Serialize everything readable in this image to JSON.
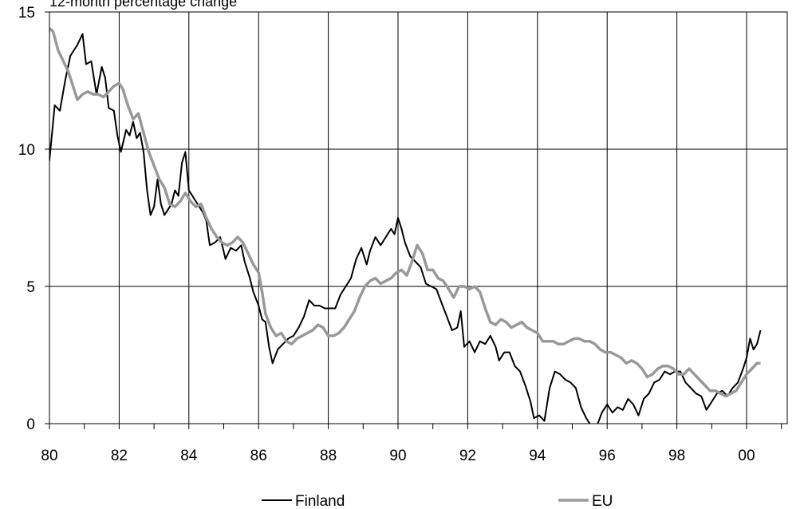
{
  "chart_data": {
    "type": "line",
    "title": "",
    "ylabel": "12-month percentage change",
    "xlabel": "",
    "xlim": [
      1980,
      2001.5
    ],
    "ylim": [
      0,
      15
    ],
    "x_ticks": [
      {
        "value": 1980,
        "label": "80"
      },
      {
        "value": 1982,
        "label": "82"
      },
      {
        "value": 1984,
        "label": "84"
      },
      {
        "value": 1986,
        "label": "86"
      },
      {
        "value": 1988,
        "label": "88"
      },
      {
        "value": 1990,
        "label": "90"
      },
      {
        "value": 1992,
        "label": "92"
      },
      {
        "value": 1994,
        "label": "94"
      },
      {
        "value": 1996,
        "label": "96"
      },
      {
        "value": 1998,
        "label": "98"
      },
      {
        "value": 2000,
        "label": "00"
      }
    ],
    "y_ticks": [
      {
        "value": 0,
        "label": "0"
      },
      {
        "value": 5,
        "label": "5"
      },
      {
        "value": 10,
        "label": "10"
      },
      {
        "value": 15,
        "label": "15"
      }
    ],
    "grid": {
      "vertical": true,
      "horizontal": true
    },
    "legend": "bottom",
    "series": [
      {
        "name": "Finland",
        "color": "#000000",
        "points": [
          [
            1979.8,
            8.9
          ],
          [
            1980.0,
            9.6
          ],
          [
            1980.15,
            11.6
          ],
          [
            1980.3,
            11.4
          ],
          [
            1980.45,
            12.5
          ],
          [
            1980.6,
            13.4
          ],
          [
            1980.8,
            13.8
          ],
          [
            1980.95,
            14.2
          ],
          [
            1981.05,
            13.1
          ],
          [
            1981.2,
            13.2
          ],
          [
            1981.35,
            12.0
          ],
          [
            1981.5,
            13.0
          ],
          [
            1981.6,
            12.6
          ],
          [
            1981.7,
            11.5
          ],
          [
            1981.85,
            11.4
          ],
          [
            1981.95,
            10.5
          ],
          [
            1982.05,
            9.9
          ],
          [
            1982.2,
            10.7
          ],
          [
            1982.3,
            10.5
          ],
          [
            1982.4,
            11.0
          ],
          [
            1982.5,
            10.4
          ],
          [
            1982.6,
            10.6
          ],
          [
            1982.7,
            9.9
          ],
          [
            1982.8,
            8.5
          ],
          [
            1982.9,
            7.6
          ],
          [
            1983.0,
            7.9
          ],
          [
            1983.1,
            8.9
          ],
          [
            1983.2,
            8.0
          ],
          [
            1983.3,
            7.6
          ],
          [
            1983.4,
            7.8
          ],
          [
            1983.5,
            8.0
          ],
          [
            1983.6,
            8.5
          ],
          [
            1983.7,
            8.3
          ],
          [
            1983.8,
            9.5
          ],
          [
            1983.9,
            9.9
          ],
          [
            1984.0,
            8.5
          ],
          [
            1984.1,
            8.3
          ],
          [
            1984.25,
            8.0
          ],
          [
            1984.4,
            7.7
          ],
          [
            1984.5,
            7.4
          ],
          [
            1984.6,
            6.5
          ],
          [
            1984.75,
            6.6
          ],
          [
            1984.9,
            6.8
          ],
          [
            1985.05,
            6.0
          ],
          [
            1985.2,
            6.4
          ],
          [
            1985.35,
            6.3
          ],
          [
            1985.5,
            6.5
          ],
          [
            1985.6,
            5.9
          ],
          [
            1985.75,
            5.3
          ],
          [
            1985.85,
            4.8
          ],
          [
            1986.0,
            4.3
          ],
          [
            1986.1,
            3.8
          ],
          [
            1986.2,
            3.7
          ],
          [
            1986.3,
            2.8
          ],
          [
            1986.4,
            2.2
          ],
          [
            1986.55,
            2.7
          ],
          [
            1986.7,
            2.9
          ],
          [
            1986.85,
            3.1
          ],
          [
            1987.0,
            3.2
          ],
          [
            1987.15,
            3.5
          ],
          [
            1987.3,
            3.9
          ],
          [
            1987.45,
            4.5
          ],
          [
            1987.6,
            4.3
          ],
          [
            1987.75,
            4.3
          ],
          [
            1987.9,
            4.2
          ],
          [
            1988.05,
            4.2
          ],
          [
            1988.2,
            4.2
          ],
          [
            1988.35,
            4.7
          ],
          [
            1988.5,
            5.0
          ],
          [
            1988.65,
            5.3
          ],
          [
            1988.8,
            6.0
          ],
          [
            1988.95,
            6.4
          ],
          [
            1989.1,
            5.8
          ],
          [
            1989.2,
            6.3
          ],
          [
            1989.35,
            6.8
          ],
          [
            1989.5,
            6.5
          ],
          [
            1989.65,
            6.8
          ],
          [
            1989.8,
            7.1
          ],
          [
            1989.9,
            6.9
          ],
          [
            1990.0,
            7.5
          ],
          [
            1990.1,
            7.1
          ],
          [
            1990.2,
            6.6
          ],
          [
            1990.35,
            6.1
          ],
          [
            1990.5,
            5.9
          ],
          [
            1990.65,
            5.7
          ],
          [
            1990.8,
            5.1
          ],
          [
            1990.95,
            5.0
          ],
          [
            1991.1,
            4.9
          ],
          [
            1991.25,
            4.4
          ],
          [
            1991.4,
            3.9
          ],
          [
            1991.55,
            3.4
          ],
          [
            1991.7,
            3.5
          ],
          [
            1991.8,
            4.1
          ],
          [
            1991.9,
            2.8
          ],
          [
            1992.05,
            3.0
          ],
          [
            1992.2,
            2.6
          ],
          [
            1992.35,
            3.0
          ],
          [
            1992.5,
            2.9
          ],
          [
            1992.65,
            3.2
          ],
          [
            1992.8,
            2.8
          ],
          [
            1992.9,
            2.3
          ],
          [
            1993.05,
            2.6
          ],
          [
            1993.2,
            2.6
          ],
          [
            1993.35,
            2.1
          ],
          [
            1993.5,
            1.9
          ],
          [
            1993.65,
            1.4
          ],
          [
            1993.8,
            0.8
          ],
          [
            1993.9,
            0.2
          ],
          [
            1994.05,
            0.3
          ],
          [
            1994.2,
            0.1
          ],
          [
            1994.35,
            1.3
          ],
          [
            1994.5,
            1.9
          ],
          [
            1994.65,
            1.8
          ],
          [
            1994.8,
            1.6
          ],
          [
            1994.95,
            1.5
          ],
          [
            1995.1,
            1.3
          ],
          [
            1995.25,
            0.6
          ],
          [
            1995.4,
            0.2
          ],
          [
            1995.55,
            -0.1
          ],
          [
            1995.7,
            -0.1
          ],
          [
            1995.85,
            0.4
          ],
          [
            1996.0,
            0.7
          ],
          [
            1996.15,
            0.4
          ],
          [
            1996.3,
            0.6
          ],
          [
            1996.45,
            0.5
          ],
          [
            1996.6,
            0.9
          ],
          [
            1996.75,
            0.7
          ],
          [
            1996.9,
            0.3
          ],
          [
            1997.05,
            0.9
          ],
          [
            1997.2,
            1.1
          ],
          [
            1997.35,
            1.5
          ],
          [
            1997.5,
            1.6
          ],
          [
            1997.65,
            1.9
          ],
          [
            1997.8,
            1.8
          ],
          [
            1997.95,
            1.9
          ],
          [
            1998.1,
            1.9
          ],
          [
            1998.25,
            1.5
          ],
          [
            1998.4,
            1.3
          ],
          [
            1998.55,
            1.1
          ],
          [
            1998.7,
            1.0
          ],
          [
            1998.85,
            0.5
          ],
          [
            1999.0,
            0.8
          ],
          [
            1999.15,
            1.1
          ],
          [
            1999.3,
            1.2
          ],
          [
            1999.45,
            1.0
          ],
          [
            1999.6,
            1.3
          ],
          [
            1999.75,
            1.5
          ],
          [
            1999.9,
            2.0
          ],
          [
            2000.0,
            2.4
          ],
          [
            2000.1,
            3.1
          ],
          [
            2000.2,
            2.7
          ],
          [
            2000.3,
            2.9
          ],
          [
            2000.4,
            3.4
          ]
        ]
      },
      {
        "name": "EU",
        "color": "#999999",
        "points": [
          [
            1979.8,
            13.1
          ],
          [
            1979.9,
            13.8
          ],
          [
            1980.0,
            14.4
          ],
          [
            1980.1,
            14.3
          ],
          [
            1980.25,
            13.6
          ],
          [
            1980.4,
            13.2
          ],
          [
            1980.55,
            12.8
          ],
          [
            1980.7,
            12.2
          ],
          [
            1980.8,
            11.8
          ],
          [
            1980.95,
            12.0
          ],
          [
            1981.1,
            12.1
          ],
          [
            1981.25,
            12.0
          ],
          [
            1981.4,
            12.0
          ],
          [
            1981.55,
            11.9
          ],
          [
            1981.7,
            12.1
          ],
          [
            1981.85,
            12.3
          ],
          [
            1982.0,
            12.4
          ],
          [
            1982.1,
            12.2
          ],
          [
            1982.25,
            11.6
          ],
          [
            1982.4,
            11.1
          ],
          [
            1982.55,
            11.3
          ],
          [
            1982.7,
            10.6
          ],
          [
            1982.85,
            9.9
          ],
          [
            1983.0,
            9.4
          ],
          [
            1983.15,
            8.9
          ],
          [
            1983.3,
            8.6
          ],
          [
            1983.45,
            8.0
          ],
          [
            1983.6,
            7.9
          ],
          [
            1983.75,
            8.1
          ],
          [
            1983.9,
            8.4
          ],
          [
            1984.05,
            8.1
          ],
          [
            1984.2,
            7.9
          ],
          [
            1984.35,
            8.0
          ],
          [
            1984.5,
            7.5
          ],
          [
            1984.65,
            7.1
          ],
          [
            1984.8,
            6.8
          ],
          [
            1984.95,
            6.6
          ],
          [
            1985.1,
            6.5
          ],
          [
            1985.25,
            6.6
          ],
          [
            1985.4,
            6.8
          ],
          [
            1985.55,
            6.6
          ],
          [
            1985.7,
            6.2
          ],
          [
            1985.85,
            5.8
          ],
          [
            1986.0,
            5.5
          ],
          [
            1986.1,
            4.8
          ],
          [
            1986.2,
            4.0
          ],
          [
            1986.35,
            3.5
          ],
          [
            1986.5,
            3.2
          ],
          [
            1986.65,
            3.3
          ],
          [
            1986.8,
            3.0
          ],
          [
            1986.95,
            2.9
          ],
          [
            1987.1,
            3.1
          ],
          [
            1987.25,
            3.2
          ],
          [
            1987.4,
            3.3
          ],
          [
            1987.55,
            3.4
          ],
          [
            1987.7,
            3.6
          ],
          [
            1987.85,
            3.5
          ],
          [
            1988.0,
            3.2
          ],
          [
            1988.15,
            3.2
          ],
          [
            1988.3,
            3.3
          ],
          [
            1988.45,
            3.5
          ],
          [
            1988.6,
            3.8
          ],
          [
            1988.75,
            4.1
          ],
          [
            1988.9,
            4.6
          ],
          [
            1989.05,
            5.0
          ],
          [
            1989.2,
            5.2
          ],
          [
            1989.35,
            5.3
          ],
          [
            1989.5,
            5.1
          ],
          [
            1989.65,
            5.2
          ],
          [
            1989.8,
            5.3
          ],
          [
            1989.95,
            5.5
          ],
          [
            1990.1,
            5.6
          ],
          [
            1990.25,
            5.4
          ],
          [
            1990.4,
            5.9
          ],
          [
            1990.55,
            6.5
          ],
          [
            1990.7,
            6.2
          ],
          [
            1990.85,
            5.6
          ],
          [
            1991.0,
            5.6
          ],
          [
            1991.15,
            5.3
          ],
          [
            1991.3,
            5.2
          ],
          [
            1991.45,
            4.9
          ],
          [
            1991.6,
            4.6
          ],
          [
            1991.75,
            5.0
          ],
          [
            1991.9,
            5.0
          ],
          [
            1992.05,
            4.9
          ],
          [
            1992.2,
            5.0
          ],
          [
            1992.35,
            4.8
          ],
          [
            1992.5,
            4.2
          ],
          [
            1992.65,
            3.7
          ],
          [
            1992.8,
            3.6
          ],
          [
            1992.95,
            3.8
          ],
          [
            1993.1,
            3.7
          ],
          [
            1993.25,
            3.5
          ],
          [
            1993.4,
            3.6
          ],
          [
            1993.55,
            3.7
          ],
          [
            1993.7,
            3.5
          ],
          [
            1993.85,
            3.4
          ],
          [
            1994.0,
            3.3
          ],
          [
            1994.15,
            3.0
          ],
          [
            1994.3,
            3.0
          ],
          [
            1994.45,
            3.0
          ],
          [
            1994.6,
            2.9
          ],
          [
            1994.75,
            2.9
          ],
          [
            1994.9,
            3.0
          ],
          [
            1995.05,
            3.1
          ],
          [
            1995.2,
            3.1
          ],
          [
            1995.35,
            3.0
          ],
          [
            1995.5,
            3.0
          ],
          [
            1995.65,
            2.9
          ],
          [
            1995.8,
            2.7
          ],
          [
            1995.95,
            2.6
          ],
          [
            1996.1,
            2.6
          ],
          [
            1996.25,
            2.5
          ],
          [
            1996.4,
            2.4
          ],
          [
            1996.55,
            2.2
          ],
          [
            1996.7,
            2.3
          ],
          [
            1996.85,
            2.2
          ],
          [
            1997.0,
            2.0
          ],
          [
            1997.15,
            1.7
          ],
          [
            1997.3,
            1.8
          ],
          [
            1997.45,
            2.0
          ],
          [
            1997.6,
            2.1
          ],
          [
            1997.75,
            2.1
          ],
          [
            1997.9,
            2.0
          ],
          [
            1998.05,
            1.8
          ],
          [
            1998.2,
            1.8
          ],
          [
            1998.35,
            2.0
          ],
          [
            1998.5,
            1.8
          ],
          [
            1998.65,
            1.6
          ],
          [
            1998.8,
            1.4
          ],
          [
            1998.95,
            1.2
          ],
          [
            1999.1,
            1.2
          ],
          [
            1999.25,
            1.1
          ],
          [
            1999.4,
            1.0
          ],
          [
            1999.55,
            1.1
          ],
          [
            1999.7,
            1.2
          ],
          [
            1999.85,
            1.5
          ],
          [
            2000.0,
            1.8
          ],
          [
            2000.15,
            2.0
          ],
          [
            2000.3,
            2.2
          ],
          [
            2000.4,
            2.2
          ]
        ]
      }
    ]
  }
}
